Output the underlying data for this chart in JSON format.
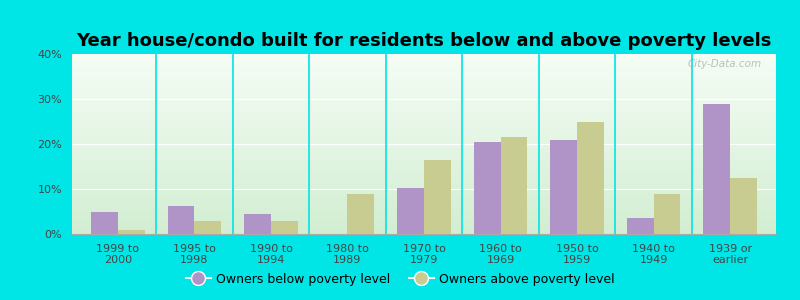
{
  "title": "Year house/condo built for residents below and above poverty levels",
  "categories": [
    "1999 to\n2000",
    "1995 to\n1998",
    "1990 to\n1994",
    "1980 to\n1989",
    "1970 to\n1979",
    "1960 to\n1969",
    "1950 to\n1959",
    "1940 to\n1949",
    "1939 or\nearlier"
  ],
  "below_poverty": [
    5.0,
    6.2,
    4.5,
    0.0,
    10.2,
    20.5,
    21.0,
    3.5,
    29.0
  ],
  "above_poverty": [
    1.0,
    3.0,
    3.0,
    9.0,
    16.5,
    21.5,
    25.0,
    9.0,
    12.5
  ],
  "below_color": "#b094c8",
  "above_color": "#c8cc90",
  "background_outer": "#00e5e5",
  "ylim": [
    0,
    40
  ],
  "yticks": [
    0,
    10,
    20,
    30,
    40
  ],
  "ytick_labels": [
    "0%",
    "10%",
    "20%",
    "30%",
    "40%"
  ],
  "bar_width": 0.35,
  "legend_below_label": "Owners below poverty level",
  "legend_above_label": "Owners above poverty level",
  "title_fontsize": 13,
  "tick_fontsize": 8,
  "legend_fontsize": 9,
  "watermark": "City-Data.com"
}
